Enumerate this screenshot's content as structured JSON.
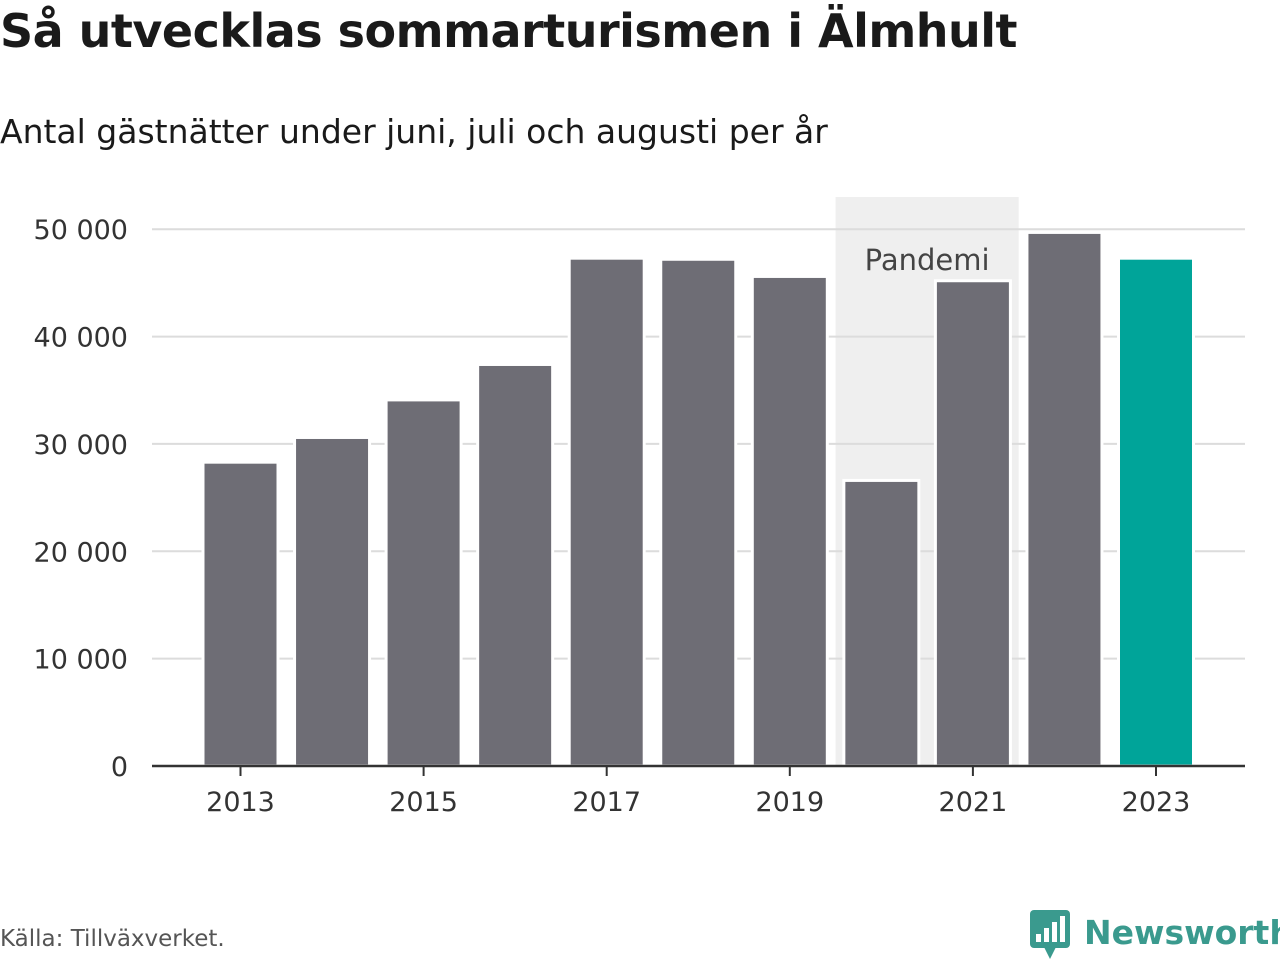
{
  "header": {
    "title": "Så utvecklas sommarturismen i Älmhult",
    "subtitle": "Antal gästnätter under juni, juli och augusti per år"
  },
  "footer": {
    "source": "Källa: Tillväxverket.",
    "brand": "Newsworthy",
    "brand_icon": "bar-chart-speech-bubble-icon"
  },
  "colors": {
    "bar": "#6e6d75",
    "highlight": "#00a499",
    "band": "#efefef",
    "grid": "#dcdcdc",
    "axis": "#333333",
    "text": "#333333",
    "brand": "#3a9a8e"
  },
  "chart_data": {
    "type": "bar",
    "title": "Så utvecklas sommarturismen i Älmhult",
    "subtitle": "Antal gästnätter under juni, juli och augusti per år",
    "categories": [
      "2013",
      "2014",
      "2015",
      "2016",
      "2017",
      "2018",
      "2019",
      "2020",
      "2021",
      "2022",
      "2023"
    ],
    "values": [
      28300,
      30600,
      34100,
      37400,
      47300,
      47200,
      45600,
      26600,
      45200,
      49700,
      47300
    ],
    "highlight_category": "2023",
    "xtick_labels": [
      "2013",
      "2015",
      "2017",
      "2019",
      "2021",
      "2023"
    ],
    "ylim": [
      0,
      53000
    ],
    "yticks": [
      0,
      10000,
      20000,
      30000,
      40000,
      50000
    ],
    "ytick_labels": [
      "0",
      "10 000",
      "20 000",
      "30 000",
      "40 000",
      "50 000"
    ],
    "xlabel": "",
    "ylabel": "",
    "grid": true,
    "annotation": {
      "label": "Pandemi",
      "from": "2020",
      "to": "2021"
    }
  }
}
